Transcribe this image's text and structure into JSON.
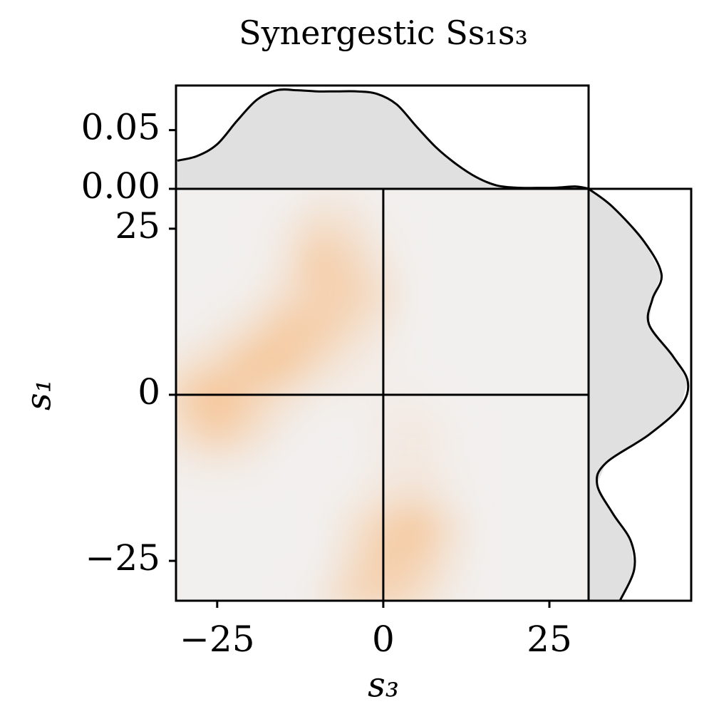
{
  "chart_data": [
    {
      "type": "heatmap",
      "title": "Synergestic Ss₁s₃",
      "xlabel": "s₃",
      "ylabel": "s₁",
      "x": [
        -30,
        -25,
        -20,
        -15,
        -10,
        -5,
        0,
        5,
        10,
        15,
        20,
        25,
        30
      ],
      "y": [
        30,
        25,
        20,
        15,
        10,
        5,
        0,
        -5,
        -10,
        -15,
        -20,
        -25,
        -30
      ],
      "values": [
        [
          0,
          0,
          0,
          0,
          0.1,
          0.1,
          0,
          0,
          0,
          0,
          0,
          0,
          0
        ],
        [
          0,
          0,
          0,
          0.1,
          0.4,
          0.3,
          0.05,
          0,
          0,
          0,
          0,
          0,
          0
        ],
        [
          0,
          0,
          0,
          0.15,
          0.7,
          0.5,
          0.15,
          0,
          0,
          0,
          0,
          0,
          0
        ],
        [
          0,
          0,
          0.05,
          0.3,
          0.6,
          0.6,
          0.3,
          0,
          0,
          0,
          0,
          0,
          0
        ],
        [
          0,
          0.1,
          0.3,
          0.7,
          0.7,
          0.4,
          0.15,
          0,
          0,
          0,
          0,
          0,
          0
        ],
        [
          0.2,
          0.4,
          0.8,
          0.8,
          0.4,
          0.15,
          0.05,
          0,
          0,
          0,
          0,
          0,
          0
        ],
        [
          0.6,
          0.9,
          0.6,
          0.3,
          0.1,
          0.05,
          0.05,
          0.05,
          0,
          0,
          0,
          0,
          0
        ],
        [
          0.4,
          0.7,
          0.4,
          0.1,
          0,
          0,
          0.1,
          0.15,
          0.05,
          0,
          0,
          0,
          0
        ],
        [
          0.1,
          0.15,
          0.1,
          0,
          0,
          0,
          0.1,
          0.15,
          0.05,
          0,
          0,
          0,
          0
        ],
        [
          0,
          0,
          0,
          0,
          0,
          0.05,
          0.2,
          0.3,
          0.1,
          0,
          0,
          0,
          0
        ],
        [
          0,
          0,
          0,
          0,
          0,
          0.2,
          0.6,
          0.8,
          0.3,
          0,
          0,
          0,
          0
        ],
        [
          0,
          0,
          0,
          0,
          0,
          0.3,
          0.7,
          0.6,
          0.2,
          0,
          0,
          0,
          0
        ],
        [
          0,
          0,
          0,
          0,
          0.1,
          0.5,
          0.6,
          0.4,
          0.1,
          0,
          0,
          0,
          0
        ]
      ],
      "color": "#f6be88",
      "background": "#f2f0ef",
      "xlim": [
        -31.2,
        30.9
      ],
      "ylim": [
        -31,
        31
      ],
      "xticks": [
        {
          "value": -25,
          "label": "−25"
        },
        0,
        25
      ],
      "yticks": [
        {
          "value": -25,
          "label": "−25"
        },
        0,
        25
      ],
      "crosshair": {
        "x": 0,
        "y": 0
      }
    },
    {
      "type": "area",
      "color": "#e0e0e0",
      "x": [
        -31,
        -28,
        -25,
        -22,
        -19,
        -16,
        -13,
        -10,
        -7,
        -4,
        -1,
        2,
        5,
        8,
        11,
        14,
        17,
        20,
        23,
        26,
        29,
        31
      ],
      "values": [
        0.024,
        0.028,
        0.038,
        0.058,
        0.076,
        0.084,
        0.084,
        0.083,
        0.083,
        0.083,
        0.081,
        0.072,
        0.053,
        0.035,
        0.021,
        0.01,
        0.003,
        0.001,
        0.0008,
        0.001,
        0.002,
        0
      ],
      "xlim": [
        -31.2,
        30.9
      ],
      "ylim": [
        0,
        0.088
      ],
      "yticks": [
        {
          "value": 0,
          "label": "0.00"
        },
        {
          "value": 0.05,
          "label": "0.05"
        }
      ]
    },
    {
      "type": "area",
      "orientation": "horizontal",
      "color": "#e0e0e0",
      "y": [
        31,
        28.3,
        23,
        18.1,
        14.4,
        10.6,
        5.8,
        2,
        -1.7,
        -6,
        -10.3,
        -13.5,
        -17.8,
        -22,
        -26.3,
        -31
      ],
      "values": [
        0,
        0.021,
        0.049,
        0.064,
        0.056,
        0.053,
        0.074,
        0.087,
        0.081,
        0.053,
        0.015,
        0.0075,
        0.021,
        0.037,
        0.04,
        0.0275
      ],
      "xlim": [
        0,
        0.09
      ],
      "ylim": [
        -31,
        31
      ]
    }
  ]
}
